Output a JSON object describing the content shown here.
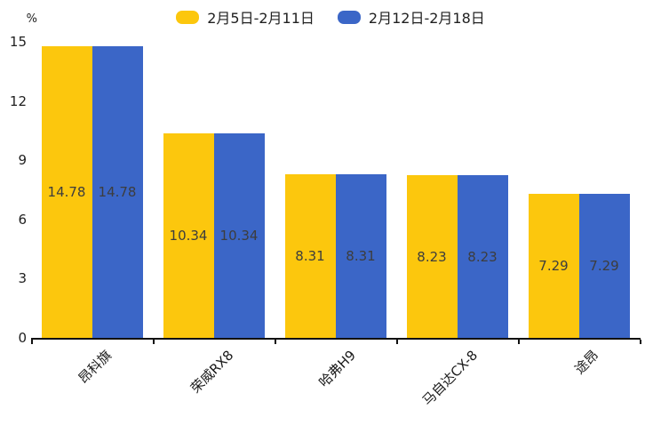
{
  "legend": {
    "items": [
      {
        "label": "2月5日-2月11日",
        "color": "#FCC70D"
      },
      {
        "label": "2月12日-2月18日",
        "color": "#3B66C7"
      }
    ]
  },
  "chart_data": {
    "type": "bar",
    "title": "",
    "unit_label": "%",
    "categories": [
      "昂科旗",
      "荣威RX8",
      "哈弗H9",
      "马自达CX-8",
      "途昂"
    ],
    "series": [
      {
        "name": "2月5日-2月11日",
        "color": "#FCC70D",
        "values": [
          14.78,
          10.34,
          8.31,
          8.23,
          7.29
        ]
      },
      {
        "name": "2月12日-2月18日",
        "color": "#3B66C7",
        "values": [
          14.78,
          10.34,
          8.31,
          8.23,
          7.29
        ]
      }
    ],
    "y_ticks": [
      0,
      3,
      6,
      9,
      12,
      15
    ],
    "ylim": [
      0,
      15
    ],
    "grid": false,
    "legend_position": "top",
    "value_labels": "inside-center",
    "value_label_color": "#3d3d3d",
    "axis_color": "#111111",
    "x_label_rotation": -45
  }
}
